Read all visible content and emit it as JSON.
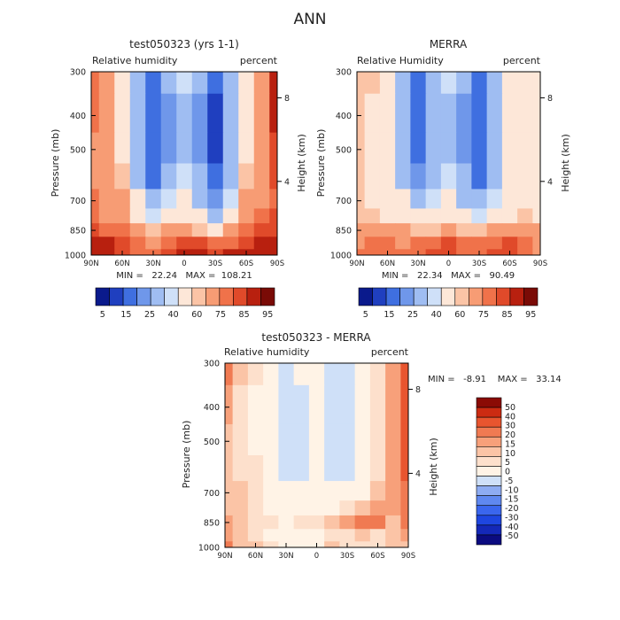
{
  "title": "ANN",
  "chart_data": [
    {
      "type": "heatmap",
      "title": "test050323 (yrs 1-1)",
      "subtitle_left": "Relative humidity",
      "subtitle_right": "percent",
      "ylabel": "Pressure (mb)",
      "ylabel_right": "Height (km)",
      "y_ticks": [
        "300",
        "400",
        "500",
        "700",
        "850",
        "1000"
      ],
      "y_right_ticks": [
        "8",
        "4"
      ],
      "x_ticks": [
        "90N",
        "60N",
        "30N",
        "0",
        "30S",
        "60S",
        "90S"
      ],
      "stats": "MIN =   22.24   MAX =  108.21",
      "colorbar_labels": [
        "5",
        "15",
        "25",
        "40",
        "60",
        "75",
        "85",
        "95"
      ],
      "lat_columns": [
        "90N",
        "75N",
        "60N",
        "45N",
        "30N",
        "15N",
        "0",
        "15S",
        "30S",
        "45S",
        "60S",
        "75S",
        "90S"
      ],
      "pressure_rows": [
        "300",
        "400",
        "500",
        "600",
        "700",
        "775",
        "850",
        "925",
        "1000"
      ],
      "values": [
        [
          80,
          70,
          60,
          40,
          25,
          35,
          50,
          35,
          25,
          40,
          55,
          72,
          92
        ],
        [
          80,
          72,
          60,
          38,
          20,
          30,
          45,
          30,
          18,
          38,
          58,
          75,
          90
        ],
        [
          78,
          72,
          62,
          40,
          20,
          32,
          48,
          30,
          15,
          35,
          62,
          78,
          88
        ],
        [
          78,
          74,
          65,
          45,
          28,
          40,
          52,
          35,
          20,
          42,
          65,
          78,
          85
        ],
        [
          80,
          75,
          70,
          55,
          40,
          50,
          58,
          45,
          32,
          52,
          70,
          78,
          82
        ],
        [
          82,
          78,
          72,
          62,
          50,
          58,
          62,
          55,
          45,
          60,
          75,
          80,
          85
        ],
        [
          88,
          82,
          80,
          75,
          65,
          70,
          72,
          68,
          62,
          72,
          82,
          85,
          88
        ],
        [
          92,
          90,
          85,
          80,
          78,
          82,
          85,
          88,
          80,
          84,
          88,
          90,
          90
        ],
        [
          98,
          95,
          88,
          82,
          80,
          85,
          90,
          95,
          88,
          90,
          95,
          90,
          90
        ]
      ]
    },
    {
      "type": "heatmap",
      "title": "MERRA",
      "subtitle_left": "Relative Humidity",
      "subtitle_right": "percent",
      "ylabel": "Pressure (mb)",
      "ylabel_right": "Height (km)",
      "y_ticks": [
        "300",
        "400",
        "500",
        "700",
        "850",
        "1000"
      ],
      "y_right_ticks": [
        "8",
        "4"
      ],
      "x_ticks": [
        "90N",
        "60N",
        "30N",
        "0",
        "30S",
        "60S",
        "90S"
      ],
      "stats": "MIN =   22.34   MAX =   90.49",
      "colorbar_labels": [
        "5",
        "15",
        "25",
        "40",
        "60",
        "75",
        "85",
        "95"
      ],
      "lat_columns": [
        "90N",
        "75N",
        "60N",
        "45N",
        "30N",
        "15N",
        "0",
        "15S",
        "30S",
        "45S",
        "60S",
        "75S",
        "90S"
      ],
      "pressure_rows": [
        "300",
        "400",
        "500",
        "600",
        "700",
        "775",
        "850",
        "925",
        "1000"
      ],
      "values": [
        [
          68,
          65,
          60,
          45,
          28,
          38,
          50,
          38,
          28,
          45,
          58,
          62,
          58
        ],
        [
          66,
          62,
          58,
          42,
          24,
          35,
          45,
          32,
          22,
          40,
          55,
          60,
          55
        ],
        [
          65,
          62,
          58,
          45,
          25,
          35,
          48,
          30,
          22,
          38,
          55,
          62,
          58
        ],
        [
          65,
          62,
          60,
          48,
          32,
          42,
          52,
          38,
          28,
          45,
          58,
          62,
          60
        ],
        [
          65,
          64,
          62,
          55,
          45,
          52,
          58,
          48,
          40,
          52,
          60,
          64,
          62
        ],
        [
          68,
          66,
          64,
          60,
          55,
          58,
          62,
          56,
          50,
          58,
          64,
          66,
          64
        ],
        [
          72,
          74,
          75,
          70,
          66,
          68,
          72,
          68,
          65,
          70,
          76,
          74,
          70
        ],
        [
          78,
          80,
          80,
          78,
          80,
          84,
          86,
          82,
          80,
          82,
          85,
          80,
          76
        ],
        [
          80,
          82,
          80,
          80,
          82,
          85,
          88,
          84,
          82,
          85,
          88,
          82,
          78
        ]
      ]
    },
    {
      "type": "heatmap",
      "title": "test050323 - MERRA",
      "subtitle_left": "Relative humidity",
      "subtitle_right": "percent",
      "ylabel": "Pressure (mb)",
      "ylabel_right": "Height (km)",
      "y_ticks": [
        "300",
        "400",
        "500",
        "700",
        "850",
        "1000"
      ],
      "y_right_ticks": [
        "8",
        "4"
      ],
      "x_ticks": [
        "90N",
        "60N",
        "30N",
        "0",
        "30S",
        "60S",
        "90S"
      ],
      "stats": "MIN =   -8.91    MAX =   33.14",
      "colorbar_labels": [
        "50",
        "40",
        "30",
        "20",
        "15",
        "10",
        "5",
        "0",
        "-5",
        "-10",
        "-15",
        "-20",
        "-30",
        "-40",
        "-50"
      ],
      "lat_columns": [
        "90N",
        "75N",
        "60N",
        "45N",
        "30N",
        "15N",
        "0",
        "15S",
        "30S",
        "45S",
        "60S",
        "75S",
        "90S"
      ],
      "pressure_rows": [
        "300",
        "400",
        "500",
        "600",
        "700",
        "775",
        "850",
        "925",
        "1000"
      ],
      "values": [
        [
          22,
          8,
          3,
          0,
          -3,
          -2,
          0,
          -3,
          -3,
          0,
          3,
          15,
          30
        ],
        [
          16,
          6,
          2,
          -1,
          -4,
          -4,
          -1,
          -4,
          -4,
          0,
          3,
          15,
          28
        ],
        [
          12,
          6,
          2,
          -2,
          -4,
          -4,
          -2,
          -3,
          -4,
          -1,
          5,
          14,
          28
        ],
        [
          10,
          6,
          3,
          -2,
          -4,
          -4,
          -2,
          -3,
          -4,
          0,
          6,
          14,
          25
        ],
        [
          10,
          8,
          4,
          0,
          -2,
          -2,
          0,
          -2,
          -2,
          2,
          8,
          14,
          20
        ],
        [
          12,
          10,
          6,
          2,
          0,
          2,
          2,
          2,
          4,
          8,
          14,
          14,
          20
        ],
        [
          14,
          10,
          6,
          4,
          2,
          3,
          4,
          8,
          14,
          22,
          18,
          12,
          18
        ],
        [
          14,
          10,
          6,
          2,
          0,
          -2,
          -2,
          4,
          6,
          8,
          6,
          10,
          14
        ],
        [
          18,
          12,
          8,
          4,
          -2,
          0,
          2,
          8,
          6,
          6,
          6,
          8,
          12
        ]
      ]
    }
  ]
}
